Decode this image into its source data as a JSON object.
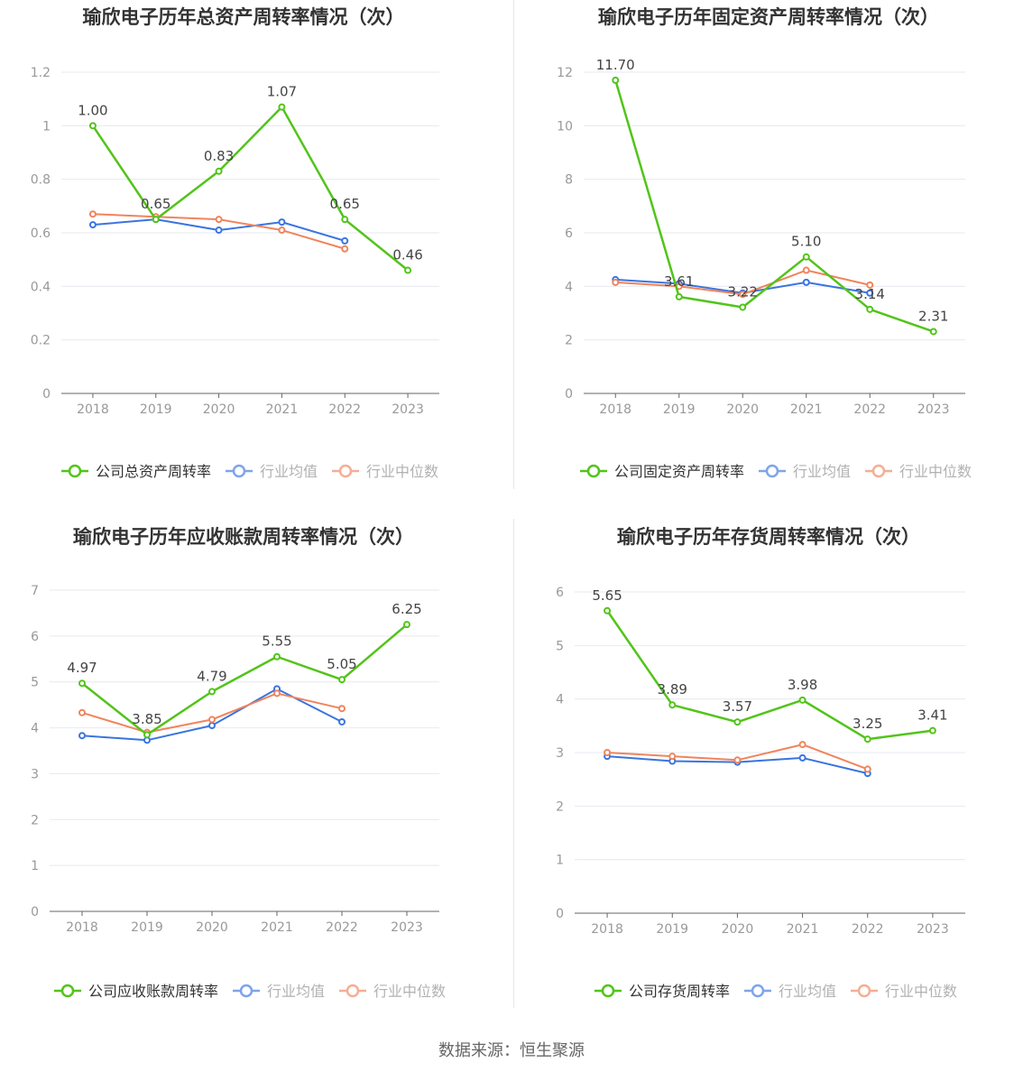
{
  "colors": {
    "company": "#52c41a",
    "average": "#3a74e0",
    "median": "#f0845c",
    "title": "#333333",
    "axis_text": "#999999",
    "grid": "#e6e9f0",
    "label": "#444444"
  },
  "source": "数据来源：恒生聚源",
  "chart_data": [
    {
      "type": "line",
      "title": "瑜欣电子历年总资产周转率情况（次）",
      "categories": [
        "2018",
        "2019",
        "2020",
        "2021",
        "2022",
        "2023"
      ],
      "ylim": [
        0,
        1.2
      ],
      "yticks": [
        "0",
        "0.2",
        "0.4",
        "0.6",
        "0.8",
        "1",
        "1.2"
      ],
      "series": [
        {
          "name": "公司总资产周转率",
          "values": [
            1.0,
            0.65,
            0.83,
            1.07,
            0.65,
            0.46
          ],
          "labels": [
            "1.00",
            "0.65",
            "0.83",
            "1.07",
            "0.65",
            "0.46"
          ]
        },
        {
          "name": "行业均值",
          "values": [
            0.63,
            0.65,
            0.61,
            0.64,
            0.57,
            null
          ]
        },
        {
          "name": "行业中位数",
          "values": [
            0.67,
            0.66,
            0.65,
            0.61,
            0.54,
            null
          ]
        }
      ]
    },
    {
      "type": "line",
      "title": "瑜欣电子历年固定资产周转率情况（次）",
      "categories": [
        "2018",
        "2019",
        "2020",
        "2021",
        "2022",
        "2023"
      ],
      "ylim": [
        0,
        12
      ],
      "yticks": [
        "0",
        "2",
        "4",
        "6",
        "8",
        "10",
        "12"
      ],
      "series": [
        {
          "name": "公司固定资产周转率",
          "values": [
            11.7,
            3.61,
            3.22,
            5.1,
            3.14,
            2.31
          ],
          "labels": [
            "11.70",
            "3.61",
            "3.22",
            "5.10",
            "3.14",
            "2.31"
          ]
        },
        {
          "name": "行业均值",
          "values": [
            4.25,
            4.1,
            3.75,
            4.15,
            3.75,
            null
          ]
        },
        {
          "name": "行业中位数",
          "values": [
            4.15,
            4.0,
            3.7,
            4.6,
            4.05,
            null
          ]
        }
      ]
    },
    {
      "type": "line",
      "title": "瑜欣电子历年应收账款周转率情况（次）",
      "categories": [
        "2018",
        "2019",
        "2020",
        "2021",
        "2022",
        "2023"
      ],
      "ylim": [
        0,
        7
      ],
      "yticks": [
        "0",
        "1",
        "2",
        "3",
        "4",
        "5",
        "6",
        "7"
      ],
      "series": [
        {
          "name": "公司应收账款周转率",
          "values": [
            4.97,
            3.85,
            4.79,
            5.55,
            5.05,
            6.25
          ],
          "labels": [
            "4.97",
            "3.85",
            "4.79",
            "5.55",
            "5.05",
            "6.25"
          ]
        },
        {
          "name": "行业均值",
          "values": [
            3.83,
            3.73,
            4.05,
            4.85,
            4.13,
            null
          ]
        },
        {
          "name": "行业中位数",
          "values": [
            4.33,
            3.9,
            4.18,
            4.75,
            4.42,
            null
          ]
        }
      ]
    },
    {
      "type": "line",
      "title": "瑜欣电子历年存货周转率情况（次）",
      "categories": [
        "2018",
        "2019",
        "2020",
        "2021",
        "2022",
        "2023"
      ],
      "ylim": [
        0,
        6
      ],
      "yticks": [
        "0",
        "1",
        "2",
        "3",
        "4",
        "5",
        "6"
      ],
      "series": [
        {
          "name": "公司存货周转率",
          "values": [
            5.65,
            3.89,
            3.57,
            3.98,
            3.25,
            3.41
          ],
          "labels": [
            "5.65",
            "3.89",
            "3.57",
            "3.98",
            "3.25",
            "3.41"
          ]
        },
        {
          "name": "行业均值",
          "values": [
            2.93,
            2.84,
            2.82,
            2.9,
            2.61,
            null
          ]
        },
        {
          "name": "行业中位数",
          "values": [
            3.0,
            2.93,
            2.86,
            3.15,
            2.69,
            null
          ]
        }
      ]
    }
  ]
}
